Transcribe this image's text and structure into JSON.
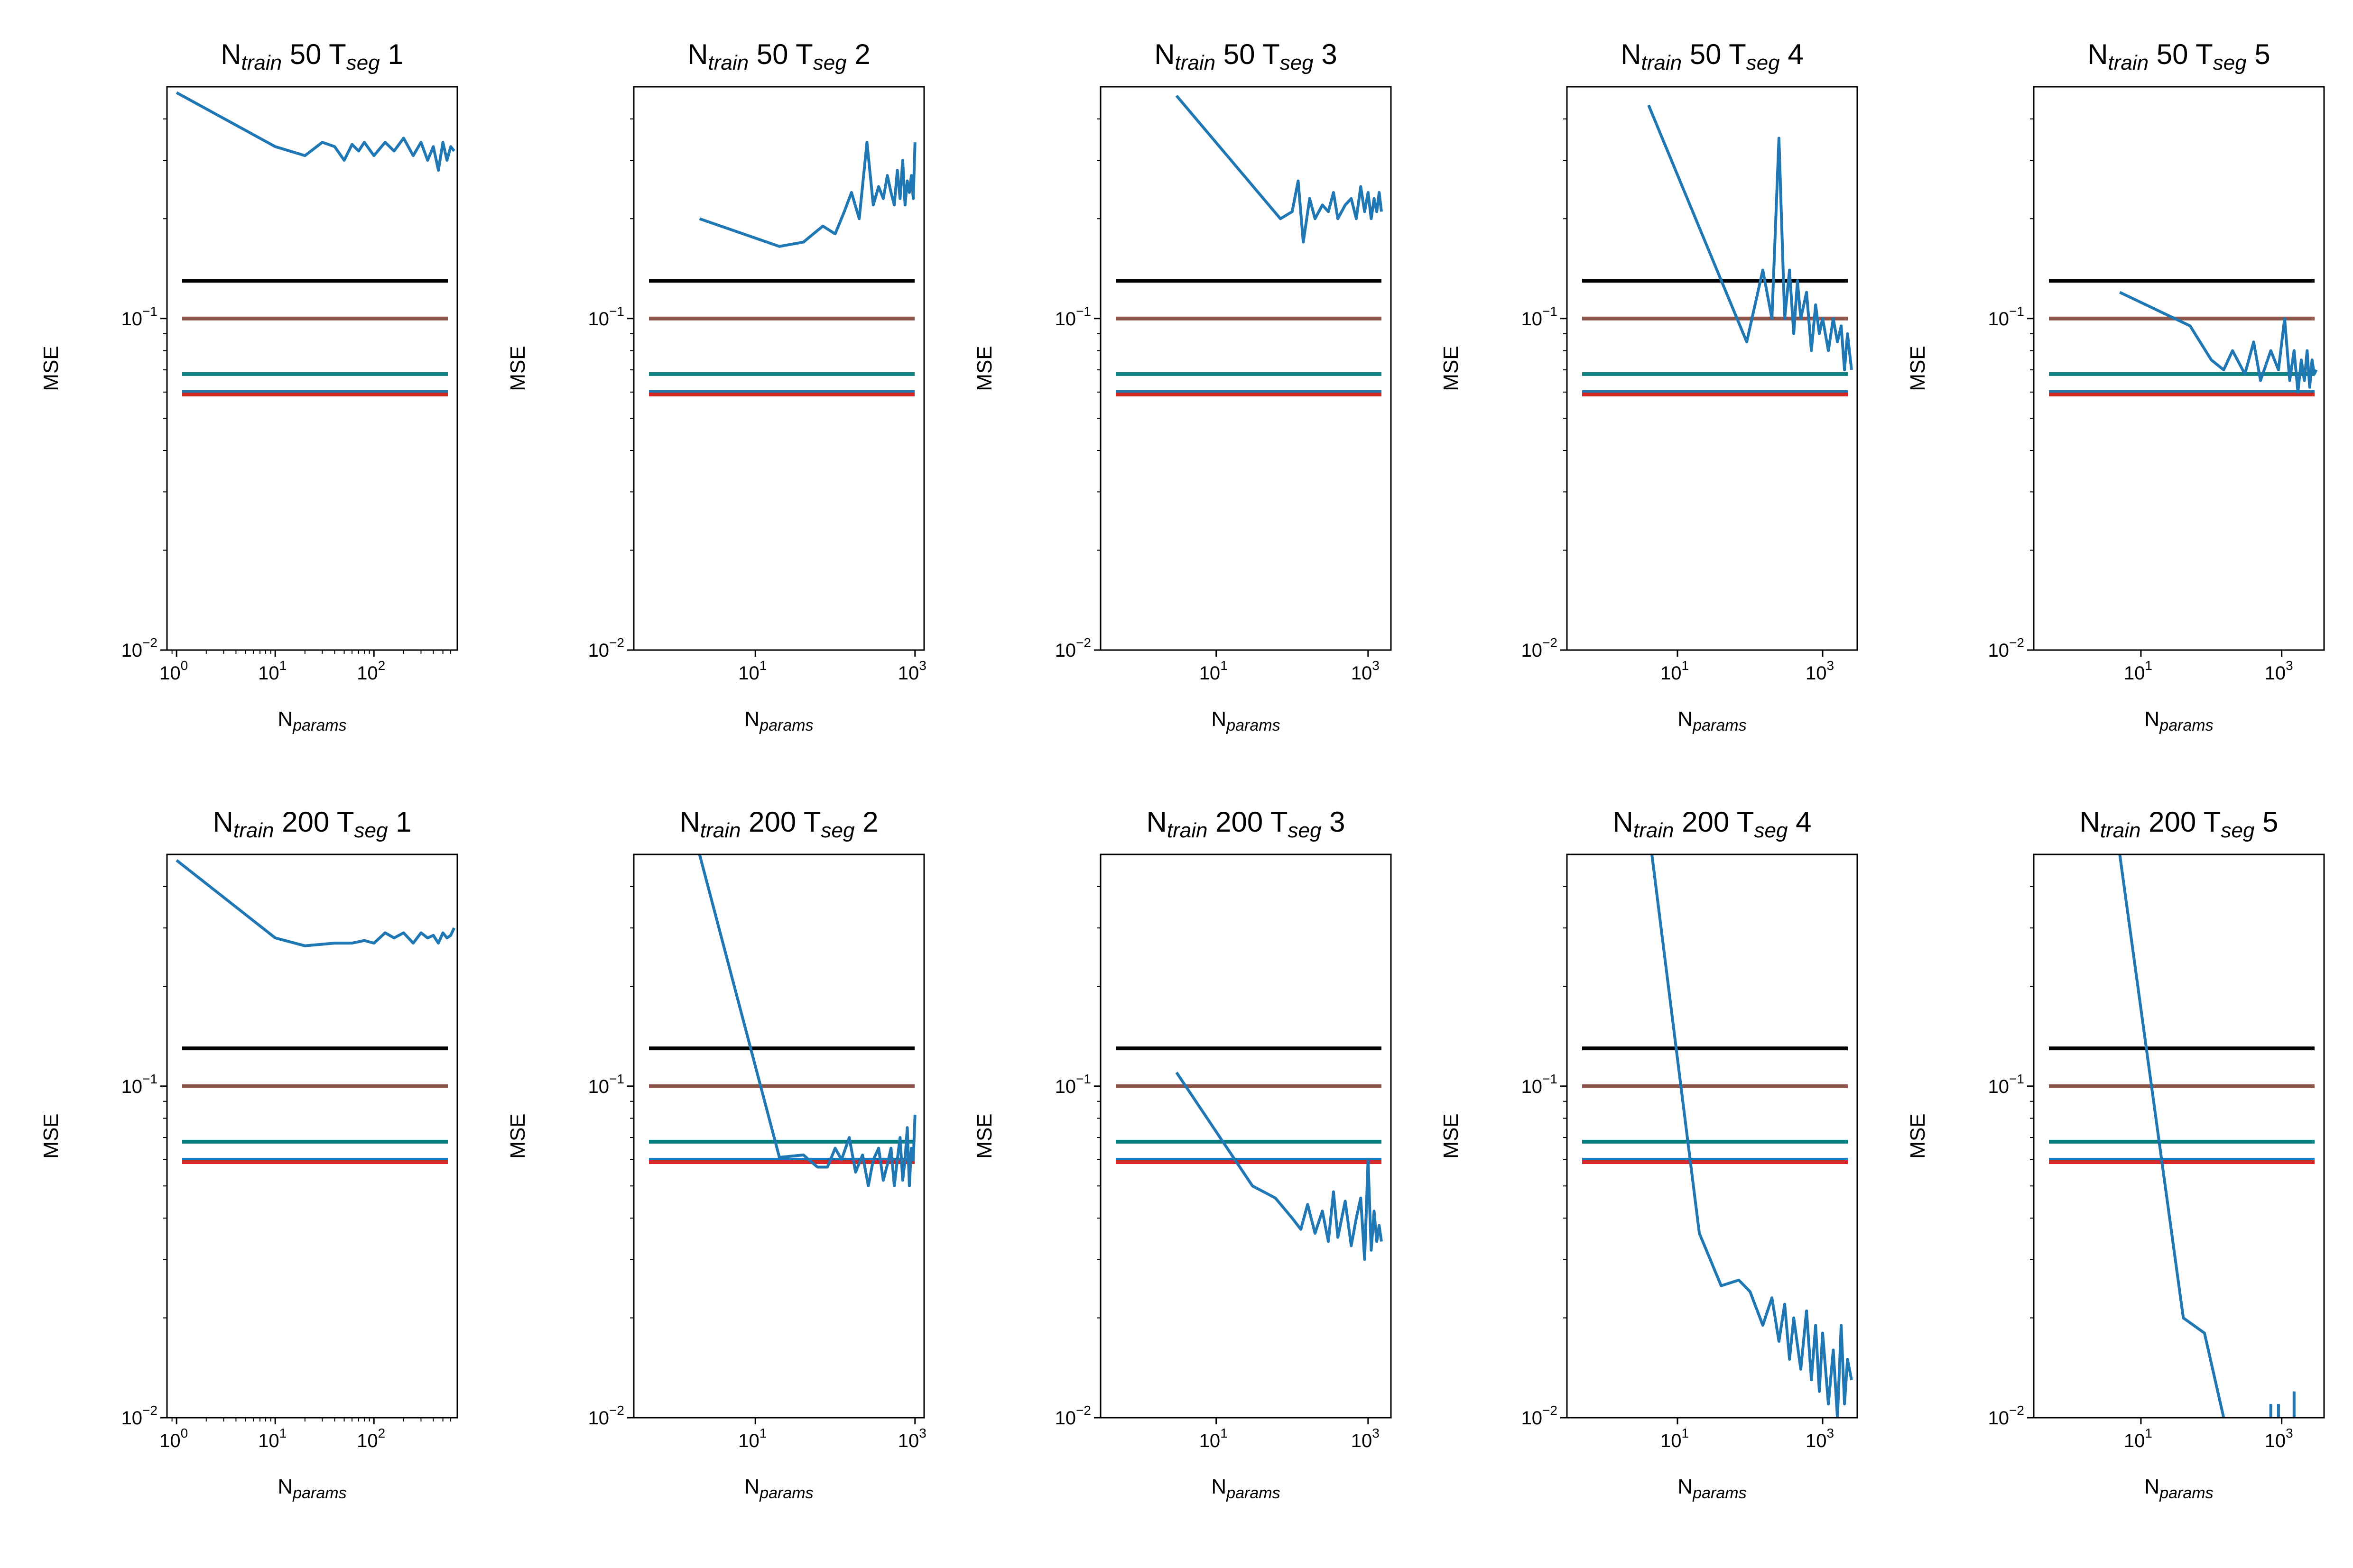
{
  "figure": {
    "ylabel": "MSE",
    "xlabel": {
      "base": "N",
      "sub": "params"
    }
  },
  "chart_data": [
    {
      "type": "line",
      "row": 0,
      "col": 0,
      "title": {
        "a": "N",
        "a_sub": "train",
        "b": " 50 T",
        "b_sub": "seg",
        "c": " 1"
      },
      "xscale": "log",
      "yscale": "log",
      "xlim": [
        0.8,
        700
      ],
      "ylim": [
        0.01,
        0.5
      ],
      "xticks": [
        1,
        10,
        100
      ],
      "yticks": [
        0.01,
        0.1
      ],
      "xminor": true,
      "hlines": [
        {
          "value": 0.13,
          "color": "#000000"
        },
        {
          "value": 0.1,
          "color": "#8c564b"
        },
        {
          "value": 0.068,
          "color": "#0a7f7f"
        },
        {
          "value": 0.06,
          "color": "#1f77b4"
        },
        {
          "value": 0.059,
          "color": "#d62728"
        }
      ],
      "series": [
        {
          "color": "#1f77b4",
          "x": [
            1,
            10,
            20,
            30,
            40,
            50,
            60,
            70,
            80,
            100,
            130,
            160,
            200,
            250,
            300,
            350,
            400,
            450,
            500,
            550,
            600,
            650
          ],
          "y": [
            0.48,
            0.33,
            0.31,
            0.34,
            0.33,
            0.3,
            0.335,
            0.32,
            0.34,
            0.31,
            0.34,
            0.32,
            0.35,
            0.31,
            0.34,
            0.3,
            0.33,
            0.28,
            0.34,
            0.3,
            0.33,
            0.32
          ]
        }
      ]
    },
    {
      "type": "line",
      "row": 0,
      "col": 1,
      "title": {
        "a": "N",
        "a_sub": "train",
        "b": " 50 T",
        "b_sub": "seg",
        "c": " 2"
      },
      "xscale": "log",
      "yscale": "log",
      "xlim": [
        0.3,
        1300
      ],
      "ylim": [
        0.01,
        0.5
      ],
      "xticks": [
        10,
        1000
      ],
      "yticks": [
        0.01,
        0.1
      ],
      "xminor": false,
      "hlines": [
        {
          "value": 0.13,
          "color": "#000000"
        },
        {
          "value": 0.1,
          "color": "#8c564b"
        },
        {
          "value": 0.068,
          "color": "#0a7f7f"
        },
        {
          "value": 0.06,
          "color": "#1f77b4"
        },
        {
          "value": 0.059,
          "color": "#d62728"
        }
      ],
      "series": [
        {
          "color": "#1f77b4",
          "x": [
            2,
            20,
            40,
            70,
            100,
            130,
            160,
            200,
            250,
            300,
            350,
            400,
            450,
            500,
            550,
            600,
            650,
            700,
            750,
            800,
            850,
            900,
            950,
            1000
          ],
          "y": [
            0.2,
            0.165,
            0.17,
            0.19,
            0.18,
            0.21,
            0.24,
            0.2,
            0.34,
            0.22,
            0.25,
            0.23,
            0.27,
            0.24,
            0.22,
            0.28,
            0.23,
            0.3,
            0.22,
            0.26,
            0.24,
            0.27,
            0.23,
            0.34
          ]
        }
      ]
    },
    {
      "type": "line",
      "row": 0,
      "col": 2,
      "title": {
        "a": "N",
        "a_sub": "train",
        "b": " 50 T",
        "b_sub": "seg",
        "c": " 3"
      },
      "xscale": "log",
      "yscale": "log",
      "xlim": [
        0.3,
        2000
      ],
      "ylim": [
        0.01,
        0.5
      ],
      "xticks": [
        10,
        1000
      ],
      "yticks": [
        0.01,
        0.1
      ],
      "xminor": false,
      "hlines": [
        {
          "value": 0.13,
          "color": "#000000"
        },
        {
          "value": 0.1,
          "color": "#8c564b"
        },
        {
          "value": 0.068,
          "color": "#0a7f7f"
        },
        {
          "value": 0.06,
          "color": "#1f77b4"
        },
        {
          "value": 0.059,
          "color": "#d62728"
        }
      ],
      "series": [
        {
          "color": "#1f77b4",
          "x": [
            3,
            70,
            100,
            120,
            140,
            170,
            200,
            250,
            300,
            350,
            400,
            500,
            600,
            700,
            800,
            900,
            1000,
            1100,
            1200,
            1300,
            1400,
            1500
          ],
          "y": [
            0.47,
            0.2,
            0.21,
            0.26,
            0.17,
            0.23,
            0.2,
            0.22,
            0.21,
            0.24,
            0.2,
            0.22,
            0.23,
            0.2,
            0.25,
            0.21,
            0.24,
            0.2,
            0.23,
            0.21,
            0.24,
            0.21
          ]
        }
      ]
    },
    {
      "type": "line",
      "row": 0,
      "col": 3,
      "title": {
        "a": "N",
        "a_sub": "train",
        "b": " 50 T",
        "b_sub": "seg",
        "c": " 4"
      },
      "xscale": "log",
      "yscale": "log",
      "xlim": [
        0.3,
        3000
      ],
      "ylim": [
        0.01,
        0.5
      ],
      "xticks": [
        10,
        1000
      ],
      "yticks": [
        0.01,
        0.1
      ],
      "xminor": false,
      "hlines": [
        {
          "value": 0.13,
          "color": "#000000"
        },
        {
          "value": 0.1,
          "color": "#8c564b"
        },
        {
          "value": 0.068,
          "color": "#0a7f7f"
        },
        {
          "value": 0.06,
          "color": "#1f77b4"
        },
        {
          "value": 0.059,
          "color": "#d62728"
        }
      ],
      "series": [
        {
          "color": "#1f77b4",
          "x": [
            4,
            90,
            150,
            200,
            250,
            300,
            350,
            400,
            450,
            500,
            600,
            700,
            800,
            900,
            1000,
            1200,
            1400,
            1600,
            1800,
            2000,
            2200,
            2500
          ],
          "y": [
            0.44,
            0.085,
            0.14,
            0.1,
            0.35,
            0.1,
            0.14,
            0.09,
            0.13,
            0.1,
            0.12,
            0.08,
            0.11,
            0.09,
            0.1,
            0.08,
            0.1,
            0.085,
            0.095,
            0.07,
            0.09,
            0.07
          ]
        }
      ]
    },
    {
      "type": "line",
      "row": 0,
      "col": 4,
      "title": {
        "a": "N",
        "a_sub": "train",
        "b": " 50 T",
        "b_sub": "seg",
        "c": " 5"
      },
      "xscale": "log",
      "yscale": "log",
      "xlim": [
        0.3,
        4000
      ],
      "ylim": [
        0.01,
        0.5
      ],
      "xticks": [
        10,
        1000
      ],
      "yticks": [
        0.01,
        0.1
      ],
      "xminor": false,
      "hlines": [
        {
          "value": 0.13,
          "color": "#000000"
        },
        {
          "value": 0.1,
          "color": "#8c564b"
        },
        {
          "value": 0.068,
          "color": "#0a7f7f"
        },
        {
          "value": 0.06,
          "color": "#1f77b4"
        },
        {
          "value": 0.059,
          "color": "#d62728"
        }
      ],
      "series": [
        {
          "color": "#1f77b4",
          "x": [
            5,
            50,
            100,
            150,
            200,
            300,
            400,
            500,
            700,
            900,
            1100,
            1300,
            1500,
            1700,
            1900,
            2100,
            2300,
            2500,
            2700,
            2900,
            3100
          ],
          "y": [
            0.12,
            0.095,
            0.075,
            0.07,
            0.08,
            0.068,
            0.085,
            0.065,
            0.08,
            0.07,
            0.1,
            0.065,
            0.08,
            0.06,
            0.075,
            0.065,
            0.08,
            0.062,
            0.075,
            0.068,
            0.07
          ]
        }
      ]
    },
    {
      "type": "line",
      "row": 1,
      "col": 0,
      "title": {
        "a": "N",
        "a_sub": "train",
        "b": " 200 T",
        "b_sub": "seg",
        "c": " 1"
      },
      "xscale": "log",
      "yscale": "log",
      "xlim": [
        0.8,
        700
      ],
      "ylim": [
        0.01,
        0.5
      ],
      "xticks": [
        1,
        10,
        100
      ],
      "yticks": [
        0.01,
        0.1
      ],
      "xminor": true,
      "hlines": [
        {
          "value": 0.13,
          "color": "#000000"
        },
        {
          "value": 0.1,
          "color": "#8c564b"
        },
        {
          "value": 0.068,
          "color": "#0a7f7f"
        },
        {
          "value": 0.06,
          "color": "#1f77b4"
        },
        {
          "value": 0.059,
          "color": "#d62728"
        }
      ],
      "series": [
        {
          "color": "#1f77b4",
          "x": [
            1,
            10,
            20,
            40,
            60,
            80,
            100,
            130,
            160,
            200,
            250,
            300,
            350,
            400,
            450,
            500,
            550,
            600,
            650
          ],
          "y": [
            0.48,
            0.28,
            0.265,
            0.27,
            0.27,
            0.275,
            0.27,
            0.29,
            0.28,
            0.29,
            0.27,
            0.29,
            0.28,
            0.285,
            0.27,
            0.29,
            0.28,
            0.285,
            0.3
          ]
        }
      ]
    },
    {
      "type": "line",
      "row": 1,
      "col": 1,
      "title": {
        "a": "N",
        "a_sub": "train",
        "b": " 200 T",
        "b_sub": "seg",
        "c": " 2"
      },
      "xscale": "log",
      "yscale": "log",
      "xlim": [
        0.3,
        1300
      ],
      "ylim": [
        0.01,
        0.5
      ],
      "xticks": [
        10,
        1000
      ],
      "yticks": [
        0.01,
        0.1
      ],
      "xminor": false,
      "hlines": [
        {
          "value": 0.13,
          "color": "#000000"
        },
        {
          "value": 0.1,
          "color": "#8c564b"
        },
        {
          "value": 0.068,
          "color": "#0a7f7f"
        },
        {
          "value": 0.06,
          "color": "#1f77b4"
        },
        {
          "value": 0.059,
          "color": "#d62728"
        }
      ],
      "series": [
        {
          "color": "#1f77b4",
          "x": [
            2,
            20,
            40,
            60,
            80,
            100,
            120,
            150,
            180,
            220,
            260,
            300,
            350,
            400,
            450,
            500,
            550,
            600,
            650,
            700,
            750,
            800,
            850,
            900,
            950,
            1000
          ],
          "y": [
            0.5,
            0.061,
            0.062,
            0.057,
            0.057,
            0.065,
            0.06,
            0.07,
            0.055,
            0.062,
            0.05,
            0.06,
            0.065,
            0.052,
            0.058,
            0.065,
            0.05,
            0.06,
            0.07,
            0.052,
            0.06,
            0.075,
            0.05,
            0.065,
            0.06,
            0.082
          ]
        }
      ]
    },
    {
      "type": "line",
      "row": 1,
      "col": 2,
      "title": {
        "a": "N",
        "a_sub": "train",
        "b": " 200 T",
        "b_sub": "seg",
        "c": " 3"
      },
      "xscale": "log",
      "yscale": "log",
      "xlim": [
        0.3,
        2000
      ],
      "ylim": [
        0.01,
        0.5
      ],
      "xticks": [
        10,
        1000
      ],
      "yticks": [
        0.01,
        0.1
      ],
      "xminor": false,
      "hlines": [
        {
          "value": 0.13,
          "color": "#000000"
        },
        {
          "value": 0.1,
          "color": "#8c564b"
        },
        {
          "value": 0.068,
          "color": "#0a7f7f"
        },
        {
          "value": 0.06,
          "color": "#1f77b4"
        },
        {
          "value": 0.059,
          "color": "#d62728"
        }
      ],
      "series": [
        {
          "color": "#1f77b4",
          "x": [
            3,
            30,
            60,
            100,
            130,
            160,
            200,
            250,
            300,
            350,
            400,
            500,
            600,
            700,
            800,
            900,
            1000,
            1100,
            1200,
            1300,
            1400,
            1500
          ],
          "y": [
            0.11,
            0.05,
            0.046,
            0.04,
            0.037,
            0.044,
            0.036,
            0.042,
            0.034,
            0.048,
            0.035,
            0.045,
            0.033,
            0.04,
            0.046,
            0.03,
            0.06,
            0.032,
            0.042,
            0.034,
            0.038,
            0.034
          ]
        }
      ]
    },
    {
      "type": "line",
      "row": 1,
      "col": 3,
      "title": {
        "a": "N",
        "a_sub": "train",
        "b": " 200 T",
        "b_sub": "seg",
        "c": " 4"
      },
      "xscale": "log",
      "yscale": "log",
      "xlim": [
        0.3,
        3000
      ],
      "ylim": [
        0.01,
        0.5
      ],
      "xticks": [
        10,
        1000
      ],
      "yticks": [
        0.01,
        0.1
      ],
      "xminor": false,
      "hlines": [
        {
          "value": 0.13,
          "color": "#000000"
        },
        {
          "value": 0.1,
          "color": "#8c564b"
        },
        {
          "value": 0.068,
          "color": "#0a7f7f"
        },
        {
          "value": 0.06,
          "color": "#1f77b4"
        },
        {
          "value": 0.059,
          "color": "#d62728"
        }
      ],
      "series": [
        {
          "color": "#1f77b4",
          "x": [
            4,
            20,
            40,
            70,
            100,
            150,
            200,
            250,
            300,
            350,
            400,
            500,
            600,
            700,
            800,
            900,
            1000,
            1200,
            1400,
            1600,
            1800,
            2000,
            2200,
            2500
          ],
          "y": [
            0.6,
            0.036,
            0.025,
            0.026,
            0.024,
            0.019,
            0.023,
            0.017,
            0.022,
            0.015,
            0.02,
            0.014,
            0.021,
            0.013,
            0.019,
            0.012,
            0.018,
            0.011,
            0.016,
            0.01,
            0.019,
            0.011,
            0.015,
            0.013
          ]
        }
      ]
    },
    {
      "type": "line",
      "row": 1,
      "col": 4,
      "title": {
        "a": "N",
        "a_sub": "train",
        "b": " 200 T",
        "b_sub": "seg",
        "c": " 5"
      },
      "xscale": "log",
      "yscale": "log",
      "xlim": [
        0.3,
        4000
      ],
      "ylim": [
        0.01,
        0.5
      ],
      "xticks": [
        10,
        1000
      ],
      "yticks": [
        0.01,
        0.1
      ],
      "xminor": false,
      "hlines": [
        {
          "value": 0.13,
          "color": "#000000"
        },
        {
          "value": 0.1,
          "color": "#8c564b"
        },
        {
          "value": 0.068,
          "color": "#0a7f7f"
        },
        {
          "value": 0.06,
          "color": "#1f77b4"
        },
        {
          "value": 0.059,
          "color": "#d62728"
        }
      ],
      "series": [
        {
          "color": "#1f77b4",
          "x": [
            5,
            40,
            80,
            150
          ],
          "y": [
            0.5,
            0.02,
            0.018,
            0.01
          ]
        },
        {
          "color": "#1f77b4",
          "x": [
            700,
            700
          ],
          "y": [
            0.011,
            0.0099
          ]
        },
        {
          "color": "#1f77b4",
          "x": [
            900,
            900
          ],
          "y": [
            0.011,
            0.0099
          ]
        },
        {
          "color": "#1f77b4",
          "x": [
            1500,
            1500
          ],
          "y": [
            0.012,
            0.0099
          ]
        }
      ]
    }
  ]
}
